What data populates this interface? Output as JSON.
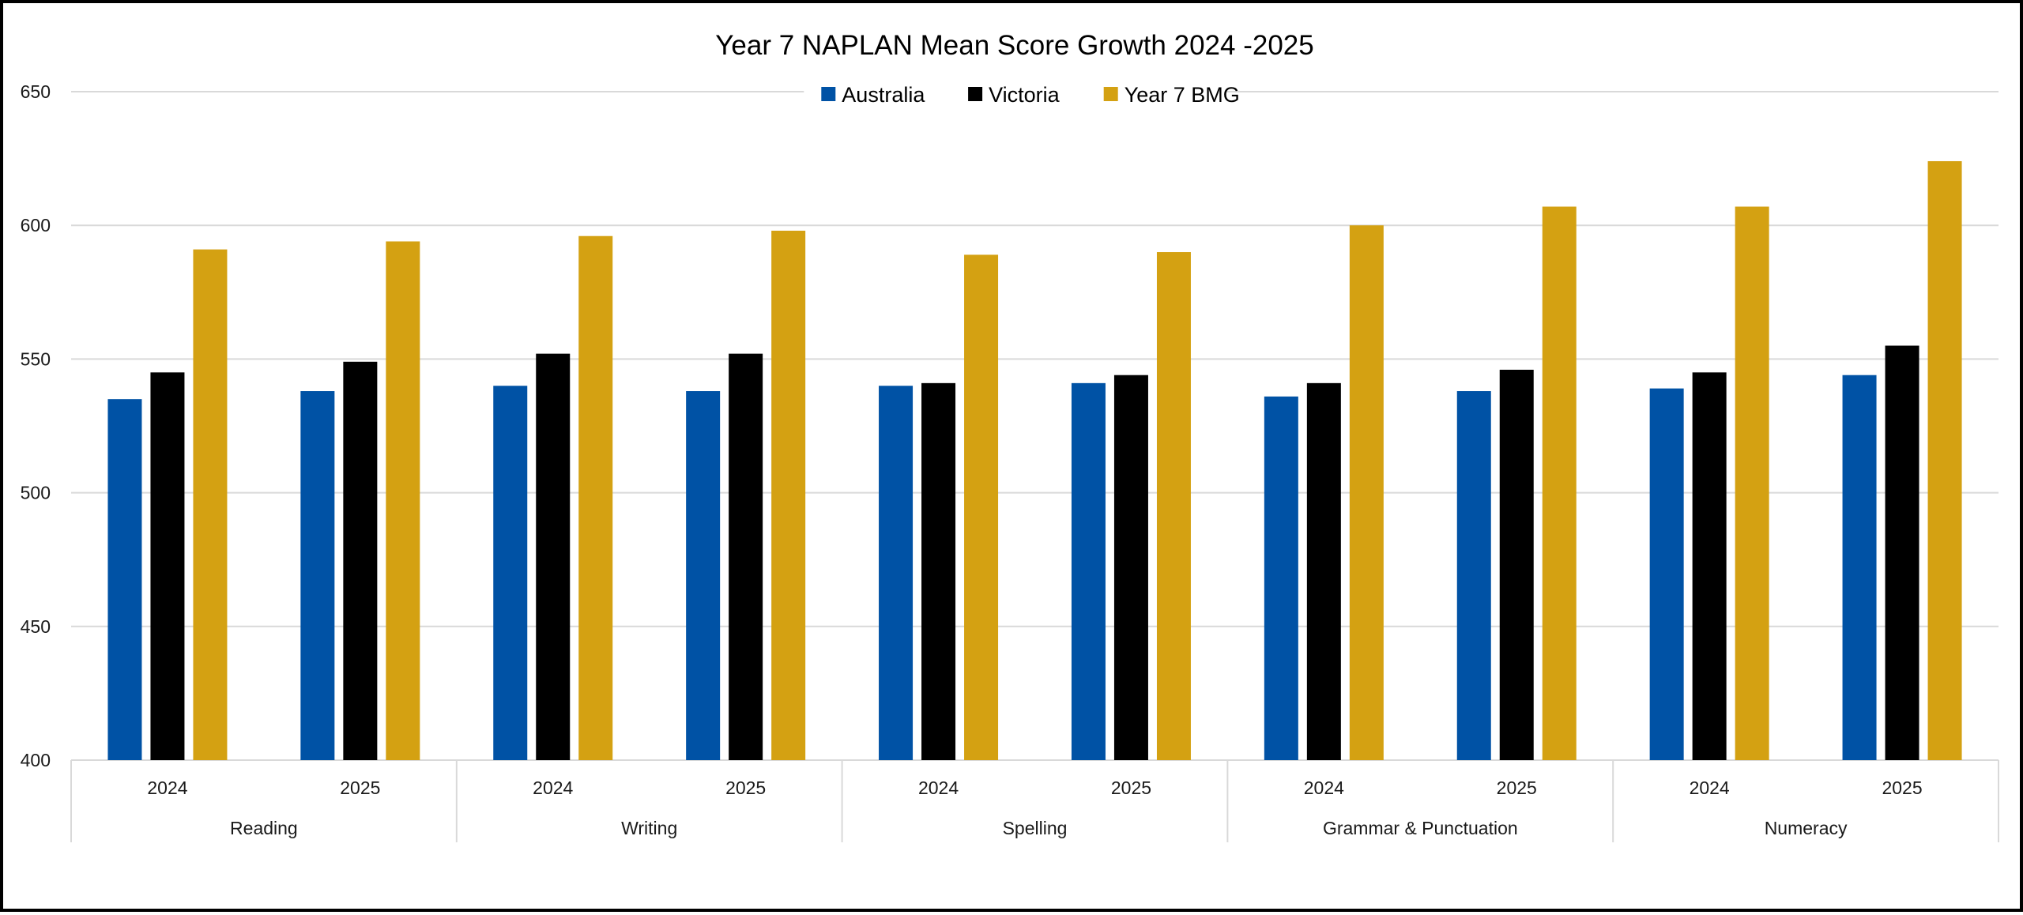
{
  "chart_data": {
    "type": "bar",
    "title": "Year 7 NAPLAN Mean Score Growth 2024 -2025",
    "xlabel": "",
    "ylabel": "",
    "ylim": [
      400,
      650
    ],
    "yticks": [
      400,
      450,
      500,
      550,
      600,
      650
    ],
    "grid": true,
    "legend": "top-center",
    "groups": [
      "Reading",
      "Writing",
      "Spelling",
      "Grammar & Punctuation",
      "Numeracy"
    ],
    "categories": [
      "2024",
      "2025",
      "2024",
      "2025",
      "2024",
      "2025",
      "2024",
      "2025",
      "2024",
      "2025"
    ],
    "series": [
      {
        "name": "Australia",
        "color": "#0052a5",
        "values": [
          535,
          538,
          540,
          538,
          540,
          541,
          536,
          538,
          539,
          544
        ]
      },
      {
        "name": "Victoria",
        "color": "#000000",
        "values": [
          545,
          549,
          552,
          552,
          541,
          544,
          541,
          546,
          545,
          555
        ]
      },
      {
        "name": "Year 7 BMG",
        "color": "#d4a112",
        "values": [
          591,
          594,
          596,
          598,
          589,
          590,
          600,
          607,
          607,
          624
        ]
      }
    ]
  }
}
